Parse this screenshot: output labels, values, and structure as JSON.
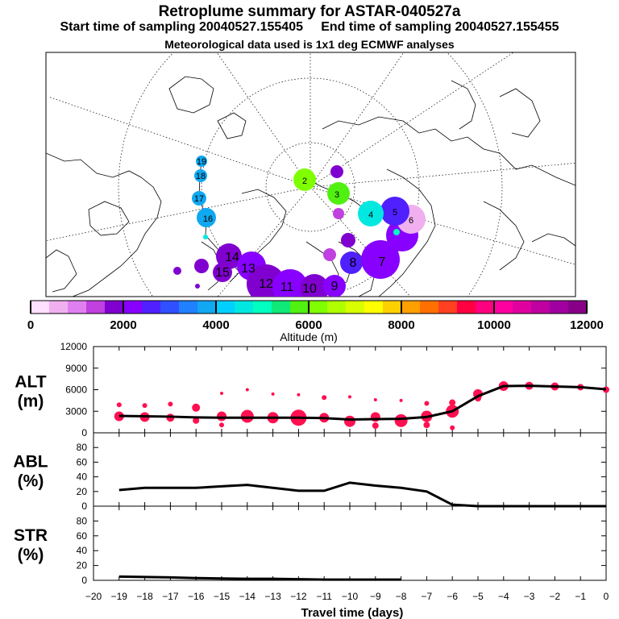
{
  "header": {
    "title": "Retroplume summary for ASTAR-040527a",
    "start_label": "Start time of sampling 20040527.155405",
    "end_label": "End time of sampling 20040527.155455",
    "subtitle2": "Meteorological data used is 1x1 deg ECMWF analyses"
  },
  "colorbar": {
    "label": "Altitude (m)",
    "ticks": [
      0,
      2000,
      4000,
      6000,
      8000,
      10000,
      12000
    ],
    "colors": [
      "#ffe0ff",
      "#f0b0f0",
      "#e080f0",
      "#c040e0",
      "#8000d0",
      "#8800ff",
      "#5020ff",
      "#3050ff",
      "#2080ff",
      "#10a8f0",
      "#00d0ff",
      "#00e8e0",
      "#00ffc0",
      "#10e878",
      "#50f010",
      "#80ff00",
      "#b0ff00",
      "#d8ff00",
      "#ffff00",
      "#ffd000",
      "#ffa000",
      "#ff7000",
      "#ff4020",
      "#ff0040",
      "#ff0080",
      "#ff00a0",
      "#e000a0",
      "#c000a0",
      "#a000a0",
      "#880088"
    ]
  },
  "map": {
    "plume_labels": [
      {
        "n": "19",
        "c": "#10a8f0"
      },
      {
        "n": "18",
        "c": "#10a8f0"
      },
      {
        "n": "17",
        "c": "#10a8f0"
      },
      {
        "n": "16",
        "c": "#10a8f0"
      },
      {
        "n": "15",
        "c": "#8000d0"
      },
      {
        "n": "14",
        "c": "#8000d0"
      },
      {
        "n": "13",
        "c": "#8800ff"
      },
      {
        "n": "12",
        "c": "#8800ff"
      },
      {
        "n": "11",
        "c": "#8000d0"
      },
      {
        "n": "10",
        "c": "#8800ff"
      },
      {
        "n": "9",
        "c": "#c040e0"
      },
      {
        "n": "8",
        "c": "#8800ff"
      },
      {
        "n": "7",
        "c": "#f0b0f0"
      },
      {
        "n": "6",
        "c": "#5020ff"
      },
      {
        "n": "5",
        "c": "#00e8e0"
      },
      {
        "n": "4",
        "c": "#50f010"
      },
      {
        "n": "3",
        "c": "#50f010"
      },
      {
        "n": "2",
        "c": "#80ff00"
      }
    ]
  },
  "chart_data": [
    {
      "type": "line",
      "name": "ALT",
      "ylabel_line1": "ALT",
      "ylabel_line2": "(m)",
      "ylim": [
        0,
        12000
      ],
      "yticks": [
        0,
        3000,
        6000,
        9000,
        12000
      ],
      "x": [
        -19,
        -18,
        -17,
        -16,
        -15,
        -14,
        -13,
        -12,
        -11,
        -10,
        -9,
        -8,
        -7,
        -6,
        -5,
        -4,
        -3,
        -2,
        -1,
        0
      ],
      "median": [
        2350,
        2300,
        2250,
        2150,
        2100,
        2100,
        2100,
        2100,
        2050,
        1850,
        1900,
        1950,
        2200,
        3000,
        5100,
        6500,
        6550,
        6450,
        6350,
        6050
      ],
      "scatter": [
        {
          "x": -19,
          "y": 3900,
          "r": 3
        },
        {
          "x": -19,
          "y": 2300,
          "r": 6
        },
        {
          "x": -18,
          "y": 3800,
          "r": 3
        },
        {
          "x": -18,
          "y": 2200,
          "r": 6
        },
        {
          "x": -17,
          "y": 4000,
          "r": 3
        },
        {
          "x": -17,
          "y": 2100,
          "r": 5
        },
        {
          "x": -16,
          "y": 3500,
          "r": 5
        },
        {
          "x": -16,
          "y": 1700,
          "r": 4
        },
        {
          "x": -15,
          "y": 5500,
          "r": 2
        },
        {
          "x": -15,
          "y": 2300,
          "r": 6
        },
        {
          "x": -15,
          "y": 1100,
          "r": 3
        },
        {
          "x": -14,
          "y": 6000,
          "r": 2
        },
        {
          "x": -14,
          "y": 2300,
          "r": 8
        },
        {
          "x": -13,
          "y": 5400,
          "r": 2
        },
        {
          "x": -13,
          "y": 2100,
          "r": 7
        },
        {
          "x": -12,
          "y": 5300,
          "r": 2
        },
        {
          "x": -12,
          "y": 2100,
          "r": 10
        },
        {
          "x": -11,
          "y": 4900,
          "r": 3
        },
        {
          "x": -11,
          "y": 2100,
          "r": 6
        },
        {
          "x": -10,
          "y": 5000,
          "r": 2
        },
        {
          "x": -10,
          "y": 1600,
          "r": 7
        },
        {
          "x": -9,
          "y": 4600,
          "r": 2
        },
        {
          "x": -9,
          "y": 2200,
          "r": 6
        },
        {
          "x": -9,
          "y": 1000,
          "r": 4
        },
        {
          "x": -8,
          "y": 4500,
          "r": 2
        },
        {
          "x": -8,
          "y": 1700,
          "r": 8
        },
        {
          "x": -7,
          "y": 4100,
          "r": 3
        },
        {
          "x": -7,
          "y": 2300,
          "r": 7
        },
        {
          "x": -7,
          "y": 1100,
          "r": 4
        },
        {
          "x": -6,
          "y": 4200,
          "r": 4
        },
        {
          "x": -6,
          "y": 3000,
          "r": 8
        },
        {
          "x": -6,
          "y": 700,
          "r": 3
        },
        {
          "x": -5,
          "y": 5400,
          "r": 6
        },
        {
          "x": -5,
          "y": 4800,
          "r": 4
        },
        {
          "x": -4,
          "y": 6500,
          "r": 6
        },
        {
          "x": -3,
          "y": 6550,
          "r": 5
        },
        {
          "x": -2,
          "y": 6450,
          "r": 5
        },
        {
          "x": -1,
          "y": 6350,
          "r": 4
        },
        {
          "x": 0,
          "y": 6000,
          "r": 4
        }
      ]
    },
    {
      "type": "line",
      "name": "ABL",
      "ylabel_line1": "ABL",
      "ylabel_line2": "(%)",
      "ylim": [
        0,
        100
      ],
      "yticks": [
        0,
        20,
        40,
        60,
        80
      ],
      "x": [
        -19,
        -18,
        -17,
        -16,
        -15,
        -14,
        -13,
        -12,
        -11,
        -10,
        -9,
        -8,
        -7,
        -6,
        -5,
        -4,
        -3,
        -2,
        -1,
        0
      ],
      "values": [
        22,
        25,
        25,
        25,
        27,
        29,
        25,
        21,
        21,
        32,
        28,
        25,
        20,
        2,
        0,
        0,
        0,
        0,
        0,
        0
      ]
    },
    {
      "type": "line",
      "name": "STR",
      "ylabel_line1": "STR",
      "ylabel_line2": "(%)",
      "ylim": [
        0,
        100
      ],
      "yticks": [
        0,
        20,
        40,
        60,
        80
      ],
      "x": [
        -19,
        -18,
        -17,
        -16,
        -15,
        -14,
        -13,
        -12,
        -11,
        -10,
        -9,
        -8
      ],
      "values": [
        5,
        4.5,
        4,
        3,
        2.5,
        2,
        2,
        1.5,
        1,
        1,
        1,
        1
      ]
    }
  ],
  "xaxis": {
    "label": "Travel time (days)",
    "ticks": [
      -20,
      -19,
      -18,
      -17,
      -16,
      -15,
      -14,
      -13,
      -12,
      -11,
      -10,
      -9,
      -8,
      -7,
      -6,
      -5,
      -4,
      -3,
      -2,
      -1,
      0
    ],
    "range": [
      -20,
      0
    ]
  }
}
